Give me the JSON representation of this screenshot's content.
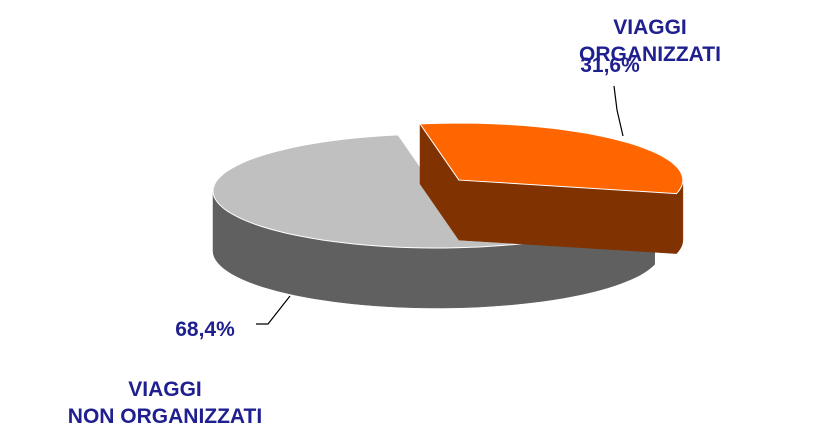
{
  "chart_data": {
    "type": "pie3d",
    "categories": [
      "VIAGGI ORGANIZZATI",
      "VIAGGI\nNON ORGANIZZATI"
    ],
    "values": [
      31.6,
      68.4
    ],
    "value_labels": [
      "31,6%",
      "68,4%"
    ],
    "colors": [
      "#ff6600",
      "#c0c0c0"
    ],
    "side_colors": [
      "#803300",
      "#606060"
    ],
    "exploded": [
      true,
      false
    ]
  }
}
